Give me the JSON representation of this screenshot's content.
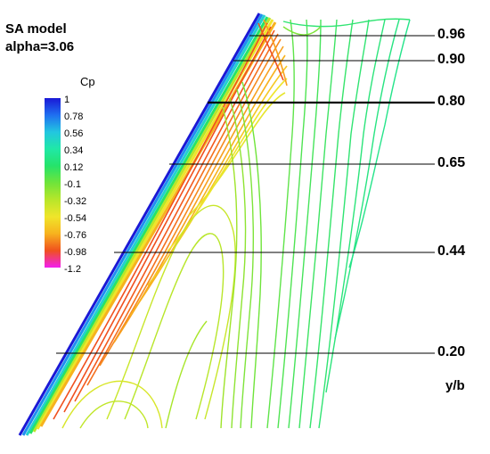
{
  "title": {
    "line1": "SA model",
    "line2": "alpha=3.06"
  },
  "legend": {
    "title": "Cp",
    "labels": [
      "1",
      "0.78",
      "0.56",
      "0.34",
      "0.12",
      "-0.1",
      "-0.32",
      "-0.54",
      "-0.76",
      "-0.98",
      "-1.2"
    ],
    "colors": [
      "#1a18d6",
      "#1f6ff0",
      "#22c6e0",
      "#20e8a6",
      "#25e36a",
      "#6fe43a",
      "#b8e62a",
      "#f0e52a",
      "#f7b21e",
      "#f0501e",
      "#f21ef0"
    ]
  },
  "stations": [
    {
      "label": "0.96",
      "width": "thin"
    },
    {
      "label": "0.90",
      "width": "thin"
    },
    {
      "label": "0.80",
      "width": "thick"
    },
    {
      "label": "0.65",
      "width": "thin"
    },
    {
      "label": "0.44",
      "width": "thin"
    },
    {
      "label": "0.20",
      "width": "thin"
    }
  ],
  "axis_label": "y/b"
}
